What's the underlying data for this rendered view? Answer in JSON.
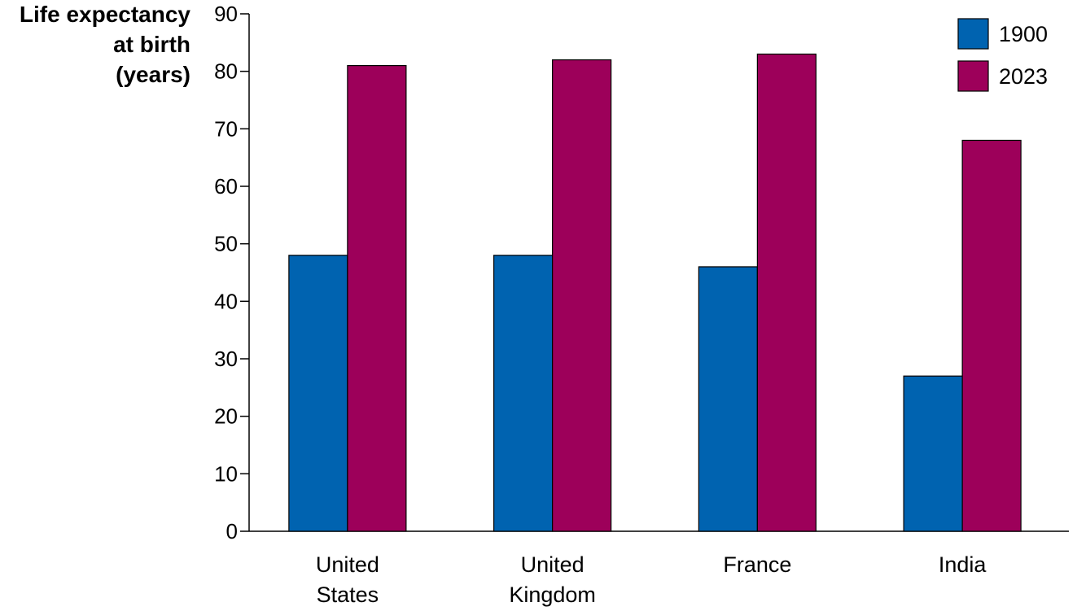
{
  "chart_data": {
    "type": "bar",
    "title": "",
    "ylabel_lines": [
      "Life expectancy",
      "at birth",
      "(years)"
    ],
    "xlabel": "",
    "ylim": [
      0,
      90
    ],
    "yticks": [
      "0",
      "10",
      "20",
      "30",
      "40",
      "50",
      "60",
      "70",
      "80",
      "90"
    ],
    "categories": [
      [
        "United",
        "States"
      ],
      [
        "United",
        "Kingdom"
      ],
      [
        "France"
      ],
      [
        "India"
      ]
    ],
    "series": [
      {
        "name": "1900",
        "color": "#0063b0",
        "values": [
          48,
          48,
          46,
          27
        ]
      },
      {
        "name": "2023",
        "color": "#9d005a",
        "values": [
          81,
          82,
          83,
          68
        ]
      }
    ],
    "legend": "top-right",
    "grid": false
  }
}
